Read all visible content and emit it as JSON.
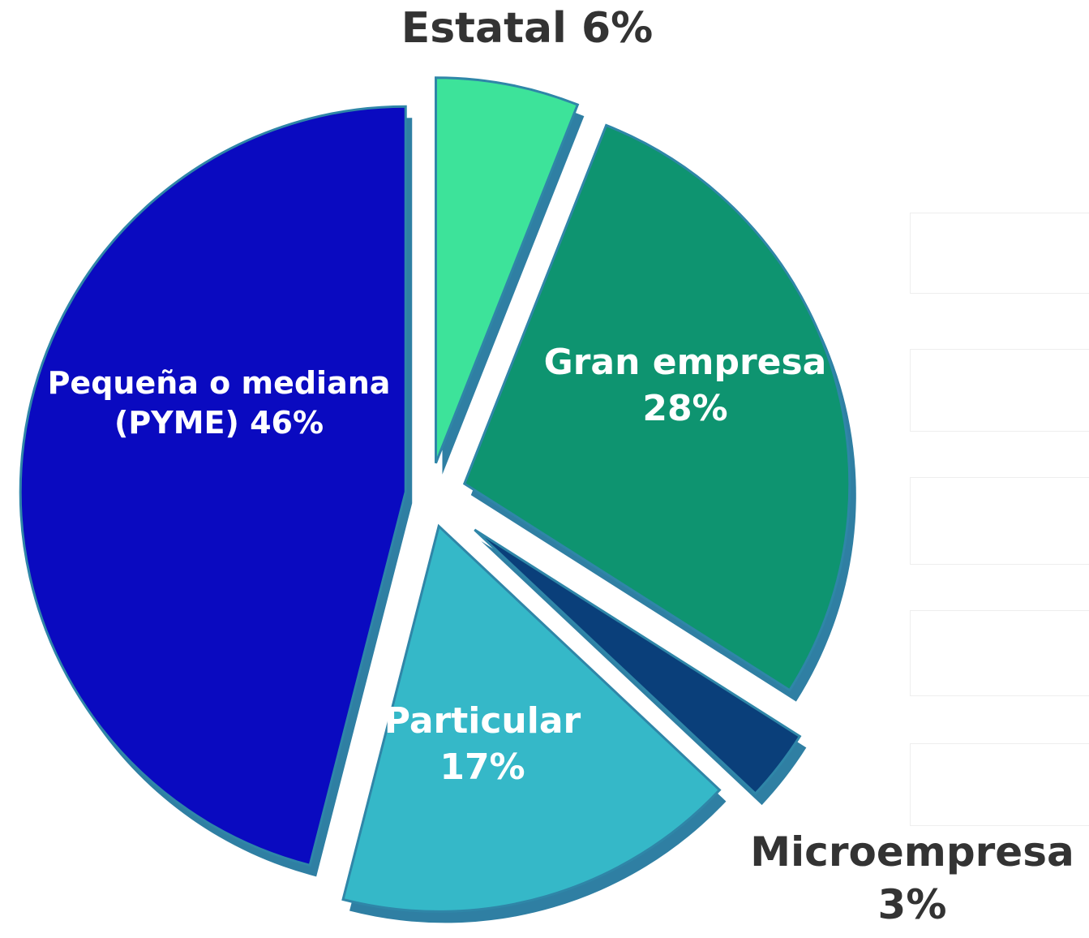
{
  "chart_data": {
    "type": "pie",
    "categories": [
      "Estatal",
      "Gran empresa",
      "Microempresa",
      "Particular",
      "Pequeña o mediana (PYME)"
    ],
    "values": [
      6,
      28,
      3,
      17,
      46
    ],
    "value_labels": [
      "6%",
      "28%",
      "3%",
      "17%",
      "46%"
    ],
    "colors": [
      "#3de39a",
      "#0e9470",
      "#0a3f7a",
      "#35b8c8",
      "#0a0ac0"
    ]
  }
}
